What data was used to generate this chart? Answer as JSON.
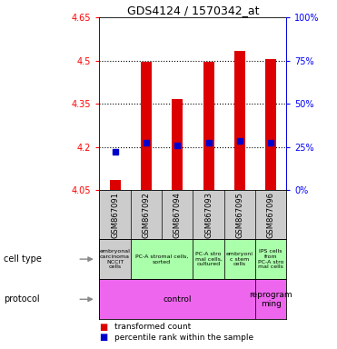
{
  "title": "GDS4124 / 1570342_at",
  "samples": [
    "GSM867091",
    "GSM867092",
    "GSM867094",
    "GSM867093",
    "GSM867095",
    "GSM867096"
  ],
  "bar_values": [
    4.085,
    4.495,
    4.365,
    4.495,
    4.535,
    4.505
  ],
  "percentile_values": [
    4.185,
    4.215,
    4.205,
    4.215,
    4.22,
    4.215
  ],
  "ylim": [
    4.05,
    4.65
  ],
  "yticks": [
    4.05,
    4.2,
    4.35,
    4.5,
    4.65
  ],
  "y2ticks": [
    0,
    25,
    50,
    75,
    100
  ],
  "dotted_lines": [
    4.2,
    4.35,
    4.5
  ],
  "bar_color": "#dd0000",
  "dot_color": "#0000cc",
  "bar_bottom": 4.05,
  "cell_types": [
    {
      "text": "embryonal\ncarcinoma\nNCCIT\ncells",
      "color": "#cccccc",
      "span": [
        0,
        1
      ]
    },
    {
      "text": "PC-A stromal cells,\nsorted",
      "color": "#aaffaa",
      "span": [
        1,
        3
      ]
    },
    {
      "text": "PC-A stro\nmal cells,\ncultured",
      "color": "#aaffaa",
      "span": [
        3,
        4
      ]
    },
    {
      "text": "embryoni\nc stem\ncells",
      "color": "#aaffaa",
      "span": [
        4,
        5
      ]
    },
    {
      "text": "IPS cells\nfrom\nPC-A stro\nmal cells",
      "color": "#aaffaa",
      "span": [
        5,
        6
      ]
    }
  ],
  "protocols": [
    {
      "text": "control",
      "color": "#ee66ee",
      "span": [
        0,
        5
      ]
    },
    {
      "text": "reprogram\nming",
      "color": "#ee66ee",
      "span": [
        5,
        6
      ]
    }
  ],
  "legend_items": [
    {
      "color": "#dd0000",
      "label": "transformed count"
    },
    {
      "color": "#0000cc",
      "label": "percentile rank within the sample"
    }
  ],
  "left_label_cell": "cell type",
  "left_label_protocol": "protocol",
  "bg_color": "#cccccc",
  "plot_bg": "#ffffff"
}
